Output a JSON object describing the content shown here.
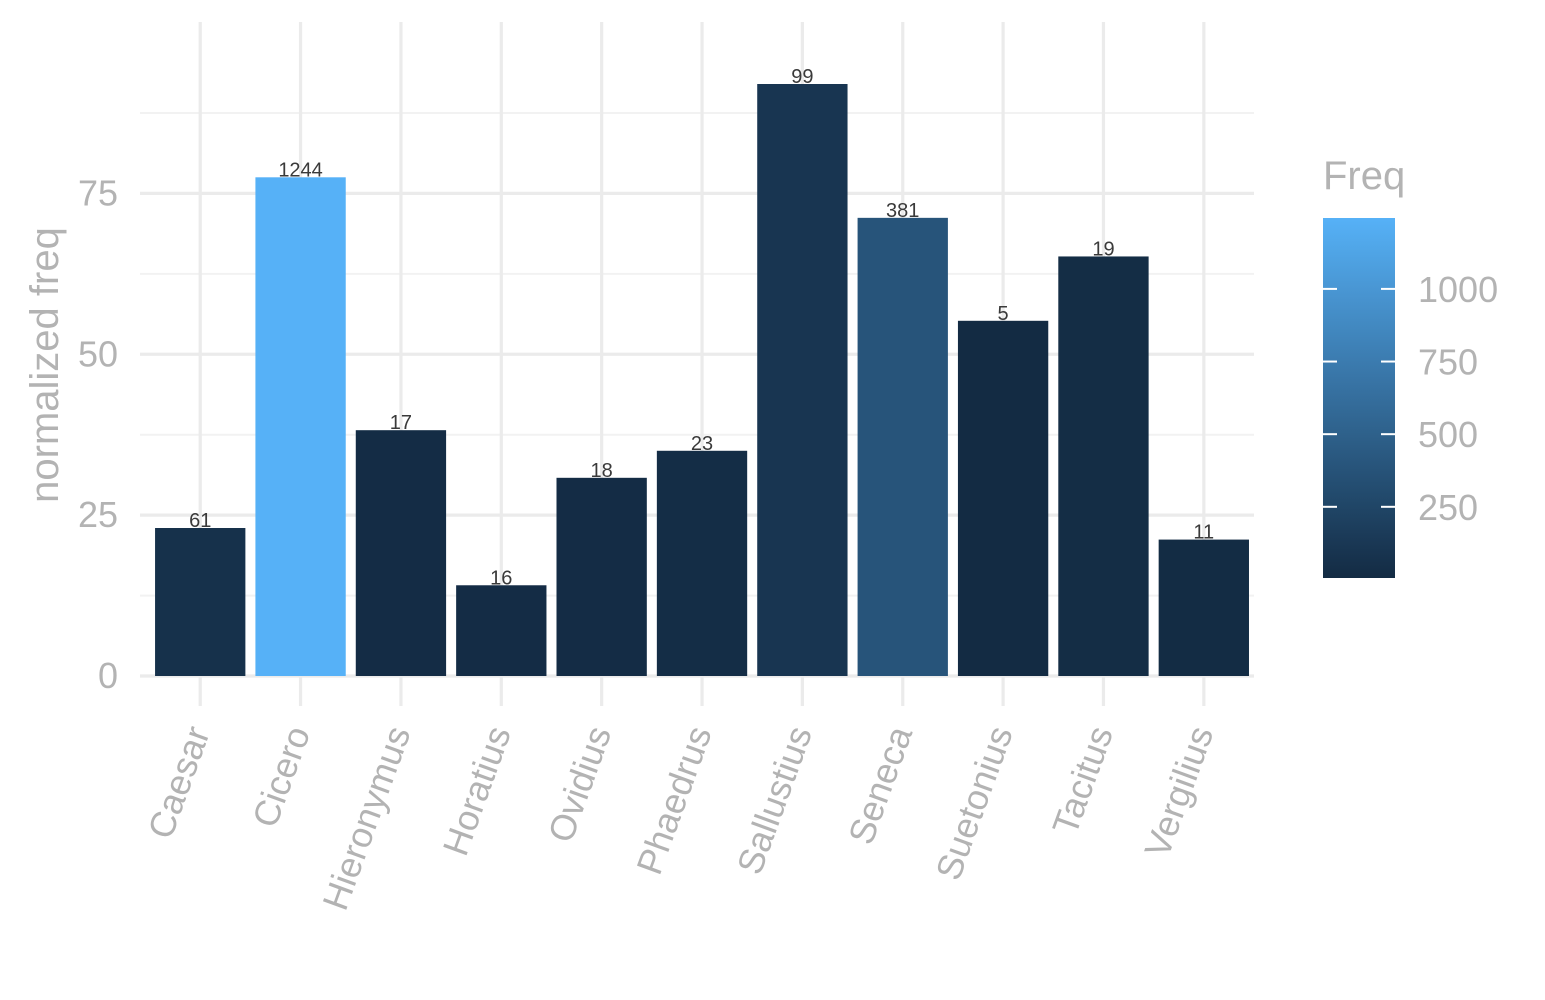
{
  "chart_data": {
    "type": "bar",
    "ylabel": "normalized freq",
    "xlabel": "",
    "categories": [
      "Caesar",
      "Cicero",
      "Hieronymus",
      "Horatius",
      "Ovidius",
      "Phaedrus",
      "Sallustius",
      "Seneca",
      "Suetonius",
      "Tacitus",
      "Vergilius"
    ],
    "values": [
      23,
      77.5,
      38.2,
      14.1,
      30.8,
      35,
      92,
      71.2,
      55.2,
      65.2,
      21.2
    ],
    "freq": [
      61,
      1244,
      17,
      16,
      18,
      23,
      99,
      381,
      5,
      19,
      11
    ],
    "bar_labels": [
      "61",
      "1244",
      "17",
      "16",
      "18",
      "23",
      "99",
      "381",
      "5",
      "19",
      "11"
    ],
    "ylim": [
      0,
      96
    ],
    "yticks": [
      0,
      25,
      50,
      75
    ],
    "ytick_labels": [
      "0",
      "25",
      "50",
      "75"
    ],
    "grid": true,
    "legend": {
      "title": "Freq",
      "position": "right",
      "type": "colorbar",
      "range": [
        5,
        1244
      ],
      "ticks": [
        250,
        500,
        750,
        1000
      ],
      "tick_labels": [
        "250",
        "500",
        "750",
        "1000"
      ],
      "color_low": "#132B43",
      "color_high": "#56B1F7"
    }
  }
}
